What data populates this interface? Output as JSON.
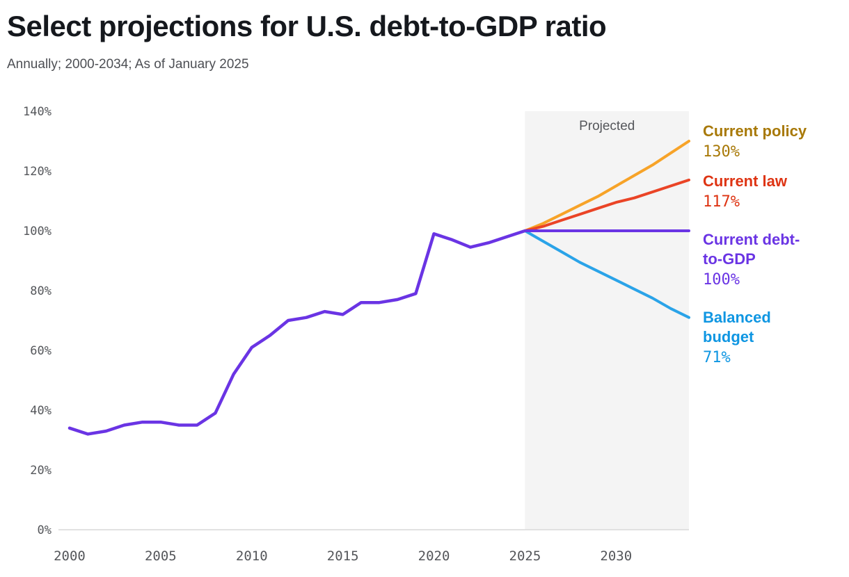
{
  "header": {
    "title": "Select projections for U.S. debt-to-GDP ratio",
    "subtitle": "Annually; 2000-2034; As of January 2025"
  },
  "chart_data": {
    "type": "line",
    "title": "Select projections for U.S. debt-to-GDP ratio",
    "subtitle": "Annually; 2000-2034; As of January 2025",
    "projected_label": "Projected",
    "projected_fill": "#f4f4f4",
    "projection_start": 2025,
    "x_range": [
      2000,
      2034
    ],
    "y_range": [
      0,
      140
    ],
    "y_tick_values": [
      0,
      20,
      40,
      60,
      80,
      100,
      120,
      140
    ],
    "y_tick_labels": [
      "0%",
      "20%",
      "40%",
      "60%",
      "80%",
      "100%",
      "120%",
      "140%"
    ],
    "x_tick_values": [
      2000,
      2005,
      2010,
      2015,
      2020,
      2025,
      2030
    ],
    "x_tick_labels": [
      "2000",
      "2005",
      "2010",
      "2015",
      "2020",
      "2025",
      "2030"
    ],
    "axis_color": "#d8d8d8",
    "historical": {
      "name": "Current debt-to-GDP (historical)",
      "color": "#6a34e4",
      "x": [
        2000,
        2001,
        2002,
        2003,
        2004,
        2005,
        2006,
        2007,
        2008,
        2009,
        2010,
        2011,
        2012,
        2013,
        2014,
        2015,
        2016,
        2017,
        2018,
        2019,
        2020,
        2021,
        2022,
        2023,
        2024,
        2025
      ],
      "values": [
        34,
        32,
        33,
        35,
        36,
        36,
        35,
        35,
        39,
        52,
        61,
        65,
        70,
        71,
        73,
        72,
        76,
        76,
        77,
        79,
        99,
        97,
        94.5,
        96,
        98,
        100
      ]
    },
    "series": [
      {
        "name": "Current policy",
        "value_label": "130%",
        "line_color": "#f7a328",
        "label_color": "#a87908",
        "x": [
          2025,
          2026,
          2027,
          2028,
          2029,
          2030,
          2031,
          2032,
          2033,
          2034
        ],
        "values": [
          100,
          102.5,
          105.5,
          108.5,
          111.5,
          115,
          118.5,
          122,
          126,
          130
        ]
      },
      {
        "name": "Current law",
        "value_label": "117%",
        "line_color": "#ea4426",
        "label_color": "#de3413",
        "x": [
          2025,
          2026,
          2027,
          2028,
          2029,
          2030,
          2031,
          2032,
          2033,
          2034
        ],
        "values": [
          100,
          101.5,
          103.5,
          105.5,
          107.5,
          109.5,
          111,
          113,
          115,
          117
        ]
      },
      {
        "name": "Current debt-to-GDP",
        "value_label": "100%",
        "line_color": "#6a34e4",
        "label_color": "#6a34e4",
        "x": [
          2025,
          2026,
          2027,
          2028,
          2029,
          2030,
          2031,
          2032,
          2033,
          2034
        ],
        "values": [
          100,
          100,
          100,
          100,
          100,
          100,
          100,
          100,
          100,
          100
        ]
      },
      {
        "name": "Balanced budget",
        "value_label": "71%",
        "line_color": "#2aa3e8",
        "label_color": "#0f96e2",
        "x": [
          2025,
          2026,
          2027,
          2028,
          2029,
          2030,
          2031,
          2032,
          2033,
          2034
        ],
        "values": [
          100,
          96.5,
          93,
          89.5,
          86.5,
          83.5,
          80.5,
          77.5,
          74,
          71
        ]
      }
    ]
  }
}
